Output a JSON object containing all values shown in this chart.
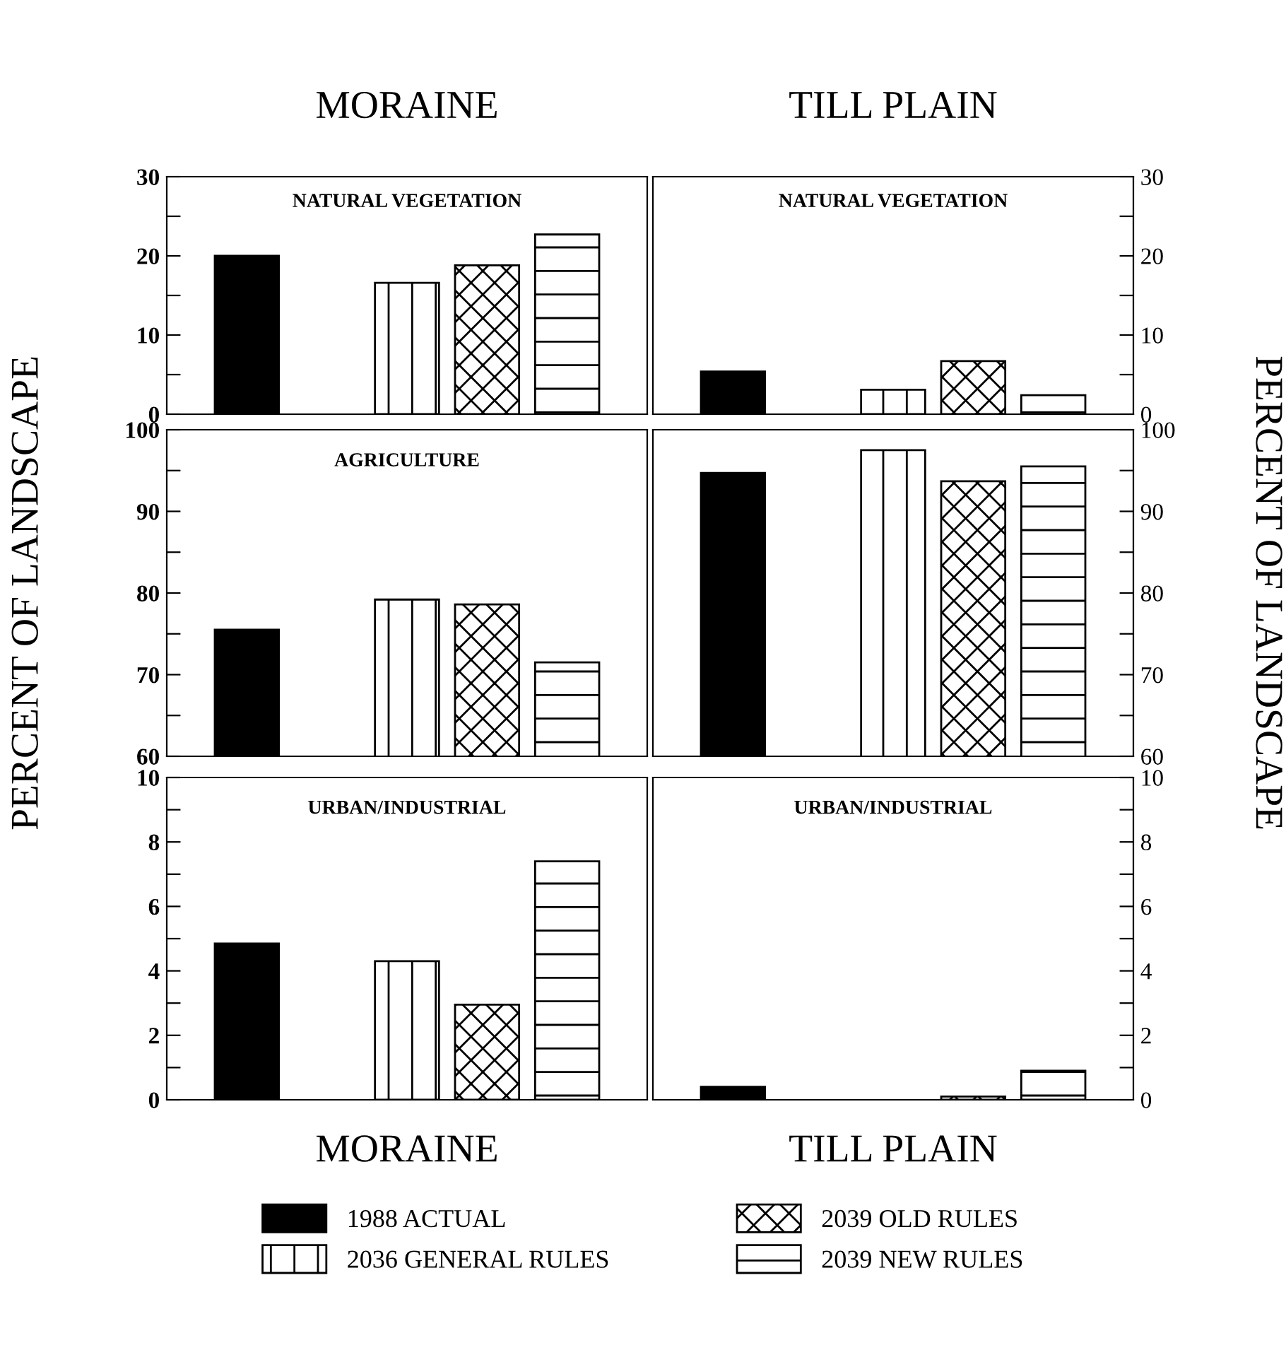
{
  "chart_data": [
    {
      "type": "bar",
      "title": "MORAINE",
      "subtitle": "NATURAL VEGETATION",
      "legend": "bottom",
      "categories": [
        null,
        null,
        null,
        null,
        null
      ],
      "ylim": [
        0,
        30
      ],
      "yticks": [
        0,
        {
          "value": 5,
          "label": null
        },
        10,
        {
          "value": 15,
          "label": null
        },
        20,
        {
          "value": 25,
          "label": null
        },
        30
      ],
      "series": [
        {
          "name": "1988 ACTUAL",
          "color": "#000000",
          "values": [
            20,
            null,
            null,
            null,
            null
          ]
        },
        {
          "name": "2036 GENERAL RULES",
          "color": "#000000",
          "values": [
            null,
            null,
            16.6,
            null,
            null
          ]
        },
        {
          "name": "2039 OLD RULES",
          "color": "#000000",
          "values": [
            null,
            null,
            null,
            18.8,
            null
          ]
        },
        {
          "name": "2039 NEW RULES",
          "color": "#000000",
          "values": [
            null,
            null,
            null,
            null,
            22.7
          ]
        }
      ]
    },
    {
      "type": "bar",
      "title": "TILL PLAIN",
      "subtitle": "NATURAL VEGETATION",
      "categories": [
        null,
        null,
        null,
        null,
        null
      ],
      "y2lim": [
        0,
        30
      ],
      "y2ticks": [
        0,
        {
          "value": 5,
          "label": null
        },
        10,
        {
          "value": 15,
          "label": null
        },
        20,
        {
          "value": 25,
          "label": null
        },
        30
      ],
      "series": [
        {
          "color": "#000000",
          "axis": "y2",
          "values": [
            5.4,
            null,
            null,
            null,
            null
          ]
        },
        {
          "color": "#000000",
          "axis": "y2",
          "values": [
            null,
            null,
            3.1,
            null,
            null
          ]
        },
        {
          "color": "#000000",
          "axis": "y2",
          "values": [
            null,
            null,
            null,
            6.7,
            null
          ]
        },
        {
          "color": "#000000",
          "axis": "y2",
          "values": [
            null,
            null,
            null,
            null,
            2.4
          ]
        }
      ]
    },
    {
      "type": "bar",
      "subtitle": "AGRICULTURE",
      "ylabel": "PERCENT OF LANDSCAPE",
      "categories": [
        null,
        null,
        null,
        null,
        null
      ],
      "ylim": [
        60,
        100
      ],
      "yticks": [
        60,
        {
          "value": 65,
          "label": null
        },
        70,
        {
          "value": 75,
          "label": null
        },
        80,
        {
          "value": 85,
          "label": null
        },
        90,
        {
          "value": 95,
          "label": null
        },
        100
      ],
      "series": [
        {
          "color": "#000000",
          "values": [
            75.5,
            null,
            null,
            null,
            null
          ]
        },
        {
          "color": "#000000",
          "values": [
            null,
            null,
            79.2,
            null,
            null
          ]
        },
        {
          "color": "#000000",
          "values": [
            null,
            null,
            null,
            78.6,
            null
          ]
        },
        {
          "color": "#000000",
          "values": [
            null,
            null,
            null,
            null,
            71.5
          ]
        }
      ]
    },
    {
      "type": "bar",
      "y2label": "PERCENT OF LANDSCAPE",
      "categories": [
        null,
        null,
        null,
        null,
        null
      ],
      "y2lim": [
        60,
        100
      ],
      "y2ticks": [
        60,
        {
          "value": 65,
          "label": null
        },
        70,
        {
          "value": 75,
          "label": null
        },
        80,
        {
          "value": 85,
          "label": null
        },
        90,
        {
          "value": 95,
          "label": null
        },
        100
      ],
      "series": [
        {
          "color": "#000000",
          "axis": "y2",
          "values": [
            94.7,
            null,
            null,
            null,
            null
          ]
        },
        {
          "color": "#000000",
          "axis": "y2",
          "values": [
            null,
            null,
            97.5,
            null,
            null
          ]
        },
        {
          "color": "#000000",
          "axis": "y2",
          "values": [
            null,
            null,
            null,
            93.7,
            null
          ]
        },
        {
          "color": "#000000",
          "axis": "y2",
          "values": [
            null,
            null,
            null,
            null,
            95.5
          ]
        }
      ]
    },
    {
      "type": "bar",
      "subtitle": "URBAN/INDUSTRIAL",
      "xlabel": "MORAINE",
      "categories": [
        null,
        null,
        null,
        null,
        null
      ],
      "ylim": [
        0,
        10
      ],
      "yticks": [
        0,
        {
          "value": 1,
          "label": null
        },
        2,
        {
          "value": 3,
          "label": null
        },
        4,
        {
          "value": 5,
          "label": null
        },
        6,
        {
          "value": 7,
          "label": null
        },
        8,
        {
          "value": 9,
          "label": null
        },
        10
      ],
      "series": [
        {
          "color": "#000000",
          "values": [
            4.85,
            null,
            null,
            null,
            null
          ]
        },
        {
          "color": "#000000",
          "values": [
            null,
            null,
            4.3,
            null,
            null
          ]
        },
        {
          "color": "#000000",
          "values": [
            null,
            null,
            null,
            2.95,
            null
          ]
        },
        {
          "color": "#000000",
          "values": [
            null,
            null,
            null,
            null,
            7.4
          ]
        }
      ]
    },
    {
      "type": "bar",
      "subtitle": "URBAN/INDUSTRIAL",
      "xlabel": "TILL PLAIN",
      "categories": [
        null,
        null,
        null,
        null,
        null
      ],
      "y2lim": [
        0,
        10
      ],
      "y2ticks": [
        0,
        {
          "value": 1,
          "label": null
        },
        2,
        {
          "value": 3,
          "label": null
        },
        4,
        {
          "value": 5,
          "label": null
        },
        6,
        {
          "value": 7,
          "label": null
        },
        8,
        {
          "value": 9,
          "label": null
        },
        10
      ],
      "series": [
        {
          "color": "#000000",
          "axis": "y2",
          "values": [
            0.4,
            null,
            null,
            null,
            null
          ]
        },
        {
          "color": "#000000",
          "axis": "y2",
          "values": [
            null,
            null,
            null,
            null,
            null
          ]
        },
        {
          "color": "#000000",
          "axis": "y2",
          "values": [
            null,
            null,
            null,
            0.1,
            null
          ]
        },
        {
          "color": "#000000",
          "axis": "y2",
          "values": [
            null,
            null,
            null,
            null,
            0.9
          ]
        }
      ]
    }
  ]
}
